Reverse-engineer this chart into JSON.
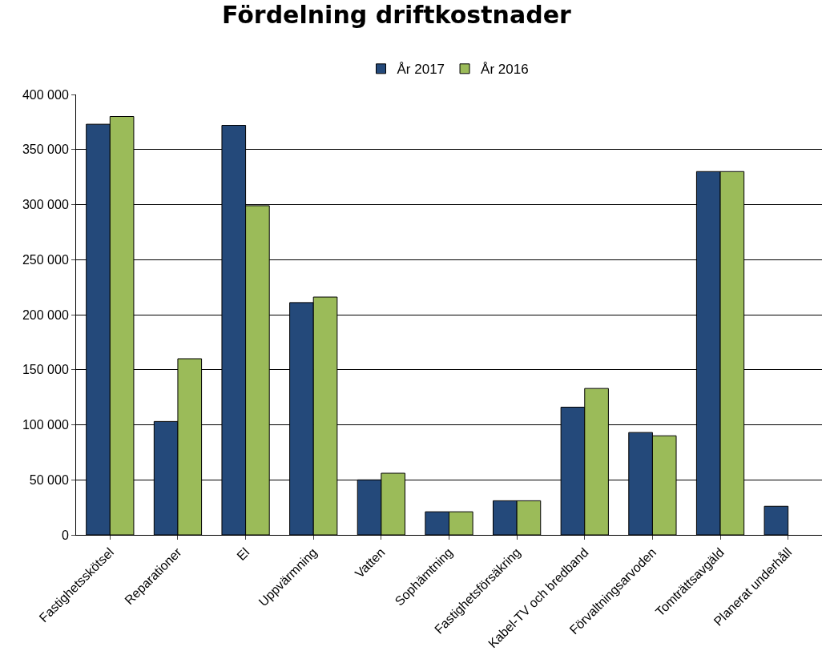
{
  "chart_data": {
    "type": "bar",
    "title": "Fördelning driftkostnader",
    "categories": [
      "Fastighetsskötsel",
      "Reparationer",
      "El",
      "Uppvärmning",
      "Vatten",
      "Sophämtning",
      "Fastighetsförsäkring",
      "Kabel-TV och bredband",
      "Förvaltningsarvoden",
      "Tomträttsavgäld",
      "Planerat underhåll"
    ],
    "series": [
      {
        "name": "År 2017",
        "color": "#24497a",
        "values": [
          373000,
          103000,
          372000,
          211000,
          50000,
          21000,
          31000,
          116000,
          93000,
          330000,
          26000
        ]
      },
      {
        "name": "År 2016",
        "color": "#9bbb59",
        "values": [
          380000,
          160000,
          299000,
          216000,
          56000,
          21000,
          31000,
          133000,
          90000,
          330000,
          null
        ]
      }
    ],
    "ylim": [
      0,
      400000
    ],
    "yticks": [
      {
        "value": 0,
        "label": "0"
      },
      {
        "value": 50000,
        "label": "50 000"
      },
      {
        "value": 100000,
        "label": "100 000"
      },
      {
        "value": 150000,
        "label": "150 000"
      },
      {
        "value": 200000,
        "label": "200 000"
      },
      {
        "value": 250000,
        "label": "250 000"
      },
      {
        "value": 300000,
        "label": "300 000"
      },
      {
        "value": 350000,
        "label": "350 000"
      },
      {
        "value": 400000,
        "label": "400 000"
      }
    ],
    "grid": "y",
    "legend": "top"
  }
}
